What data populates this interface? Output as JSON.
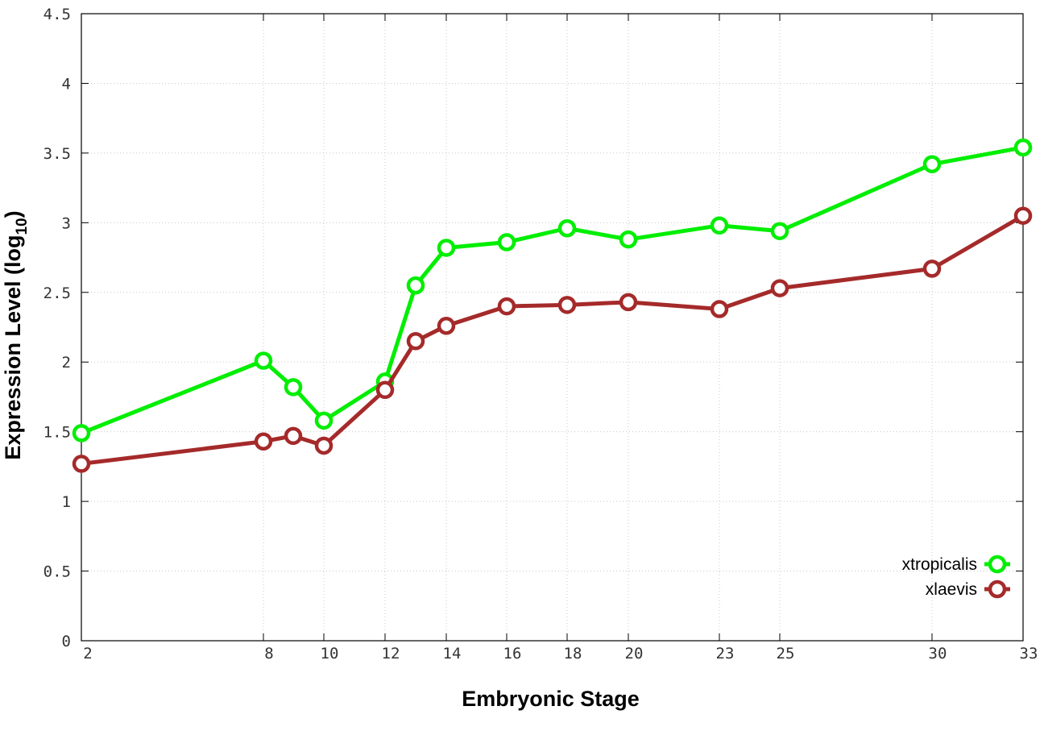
{
  "chart_data": {
    "type": "line",
    "xlabel": "Embryonic Stage",
    "ylabel": {
      "main": "Expression Level (log",
      "subscript": "10",
      "close": ")"
    },
    "x_scale": "categorical",
    "categories": [
      "2",
      "8",
      "9",
      "10",
      "12",
      "13",
      "14",
      "16",
      "18",
      "20",
      "23",
      "25",
      "30",
      "33"
    ],
    "x_tick_labels": [
      "2",
      "8",
      "10",
      "12",
      "14",
      "16",
      "18",
      "20",
      "23",
      "25",
      "30",
      "33"
    ],
    "ylim": [
      0,
      4.5
    ],
    "y_ticks": [
      0,
      0.5,
      1,
      1.5,
      2,
      2.5,
      3,
      3.5,
      4,
      4.5
    ],
    "y_tick_labels": [
      "0",
      "0.5",
      "1",
      "1.5",
      "2",
      "2.5",
      "3",
      "3.5",
      "4",
      "4.5"
    ],
    "grid": true,
    "legend_position": "bottom-right",
    "series": [
      {
        "name": "xtropicalis",
        "color": "#00ee00",
        "values": [
          1.49,
          2.01,
          1.82,
          1.58,
          1.86,
          2.55,
          2.82,
          2.86,
          2.96,
          2.88,
          2.98,
          2.94,
          3.42,
          3.54
        ]
      },
      {
        "name": "xlaevis",
        "color": "#a52a2a",
        "values": [
          1.27,
          1.43,
          1.47,
          1.4,
          1.8,
          2.15,
          2.26,
          2.4,
          2.41,
          2.43,
          2.38,
          2.53,
          2.67,
          3.05
        ]
      }
    ]
  }
}
